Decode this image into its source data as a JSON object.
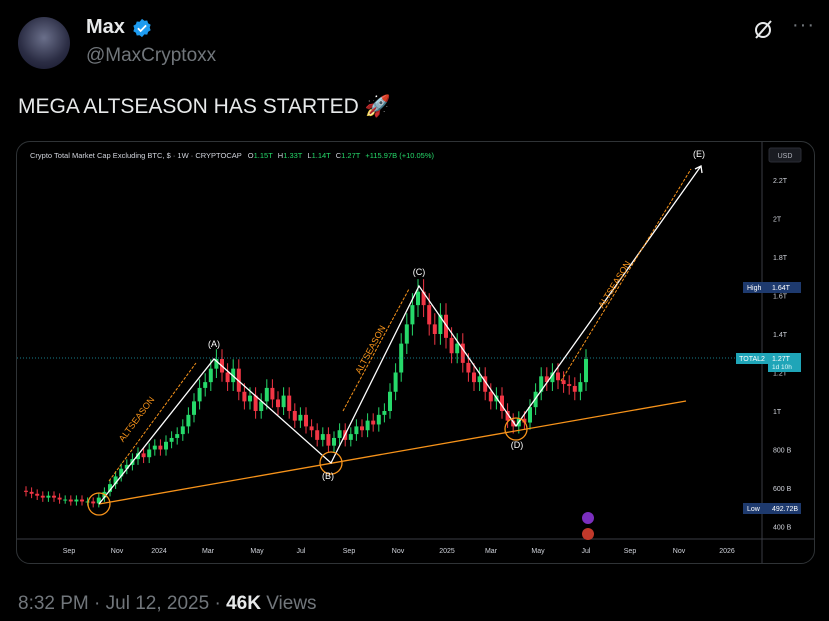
{
  "author": {
    "name": "Max",
    "handle": "@MaxCryptoxx",
    "verified": true,
    "verified_color": "#1d9bf0"
  },
  "top_actions": {
    "grok_icon": "slashed-circle-icon",
    "more_icon": "more-dots-icon",
    "more_label": "···"
  },
  "tweet": {
    "text": "MEGA ALTSEASON HAS STARTED",
    "emoji": "🚀"
  },
  "footer": {
    "time": "8:32 PM",
    "date": "Jul 12, 2025",
    "views_count": "46K",
    "views_label": "Views",
    "sep": "·"
  },
  "chart_data": {
    "type": "candlestick",
    "title": "Crypto Total Market Cap Excluding BTC, $ · 1W · CRYPTOCAP",
    "ohlc": {
      "o_label": "O",
      "o": "1.15T",
      "h_label": "H",
      "h": "1.33T",
      "l_label": "L",
      "l": "1.14T",
      "c_label": "C",
      "c": "1.27T",
      "change": "+115.97B (+10.05%)"
    },
    "currency": "USD",
    "y_ticks": [
      "2.2T",
      "2T",
      "1.8T",
      "1.6T",
      "1.4T",
      "1.2T",
      "1T",
      "800 B",
      "600 B",
      "400 B"
    ],
    "y_tick_values": [
      2.2,
      2.0,
      1.8,
      1.6,
      1.4,
      1.2,
      1.0,
      0.8,
      0.6,
      0.4
    ],
    "y_unit": "T",
    "x_ticks": [
      "Sep",
      "Nov",
      "2024",
      "Mar",
      "May",
      "Jul",
      "Sep",
      "Nov",
      "2025",
      "Mar",
      "May",
      "Jul",
      "Sep",
      "Nov",
      "2026"
    ],
    "weekly_closes": [
      0.58,
      0.57,
      0.56,
      0.55,
      0.56,
      0.55,
      0.54,
      0.54,
      0.53,
      0.54,
      0.53,
      0.53,
      0.52,
      0.55,
      0.58,
      0.62,
      0.66,
      0.7,
      0.72,
      0.75,
      0.78,
      0.76,
      0.8,
      0.82,
      0.8,
      0.84,
      0.86,
      0.88,
      0.92,
      0.98,
      1.05,
      1.12,
      1.15,
      1.22,
      1.27,
      1.2,
      1.15,
      1.22,
      1.1,
      1.05,
      1.08,
      1.0,
      1.05,
      1.12,
      1.06,
      1.02,
      1.08,
      1.0,
      0.95,
      0.98,
      0.92,
      0.9,
      0.85,
      0.88,
      0.82,
      0.86,
      0.9,
      0.85,
      0.88,
      0.92,
      0.9,
      0.95,
      0.93,
      0.98,
      1.0,
      1.1,
      1.2,
      1.35,
      1.45,
      1.55,
      1.62,
      1.55,
      1.45,
      1.4,
      1.5,
      1.38,
      1.3,
      1.35,
      1.25,
      1.2,
      1.15,
      1.18,
      1.1,
      1.05,
      1.08,
      1.0,
      0.95,
      0.92,
      0.96,
      0.94,
      1.02,
      1.1,
      1.18,
      1.15,
      1.2,
      1.16,
      1.14,
      1.13,
      1.1,
      1.15,
      1.27
    ],
    "high_label": "High",
    "high_value": "1.64T",
    "low_label": "Low",
    "low_value": "492.72B",
    "current": {
      "symbol": "TOTAL2",
      "price": "1.27T",
      "countdown": "1d 10h"
    },
    "waves": [
      "(A)",
      "(B)",
      "(C)",
      "(D)",
      "(E)"
    ],
    "annotation": "ALTSEASON",
    "colors": {
      "up": "#26d96a",
      "down": "#f23645",
      "wave_line": "#ffffff",
      "support": "#f7931a",
      "arrow": "#f7931a",
      "price_tag": "#1fa5b8",
      "high_low_tag": "#1e3a6e"
    }
  }
}
